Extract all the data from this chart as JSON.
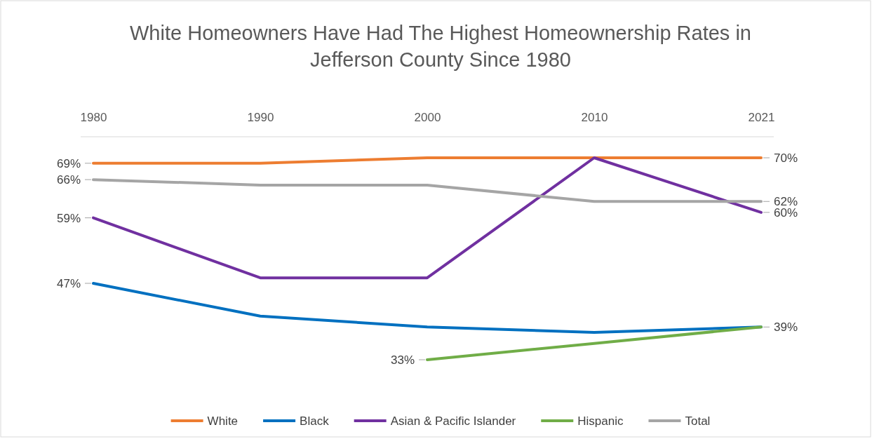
{
  "chart_data": {
    "type": "line",
    "title": "White Homeowners Have Had The Highest Homeownership Rates in Jefferson County Since 1980",
    "categories": [
      "1980",
      "1990",
      "2000",
      "2010",
      "2021"
    ],
    "series": [
      {
        "name": "White",
        "color": "#ed7d31",
        "values": [
          69,
          69,
          70,
          70,
          70
        ],
        "value_labels": [
          "69%",
          null,
          null,
          null,
          "70%"
        ]
      },
      {
        "name": "Black",
        "color": "#0070c0",
        "values": [
          47,
          41,
          39,
          38,
          39
        ],
        "value_labels": [
          "47%",
          null,
          null,
          null,
          null
        ]
      },
      {
        "name": "Asian & Pacific Islander",
        "color": "#7030a0",
        "values": [
          59,
          48,
          48,
          70,
          60
        ],
        "value_labels": [
          "59%",
          null,
          null,
          null,
          "60%"
        ]
      },
      {
        "name": "Hispanic",
        "color": "#70ad47",
        "values": [
          null,
          null,
          33,
          36,
          39
        ],
        "value_labels": [
          null,
          null,
          "33%",
          null,
          "39%"
        ]
      },
      {
        "name": "Total",
        "color": "#a5a5a5",
        "values": [
          66,
          65,
          65,
          62,
          62
        ],
        "value_labels": [
          "66%",
          null,
          null,
          null,
          "62%"
        ]
      }
    ],
    "legend": "bottom",
    "marker": "none",
    "line_style": "solid",
    "grid": false,
    "relative": false
  }
}
